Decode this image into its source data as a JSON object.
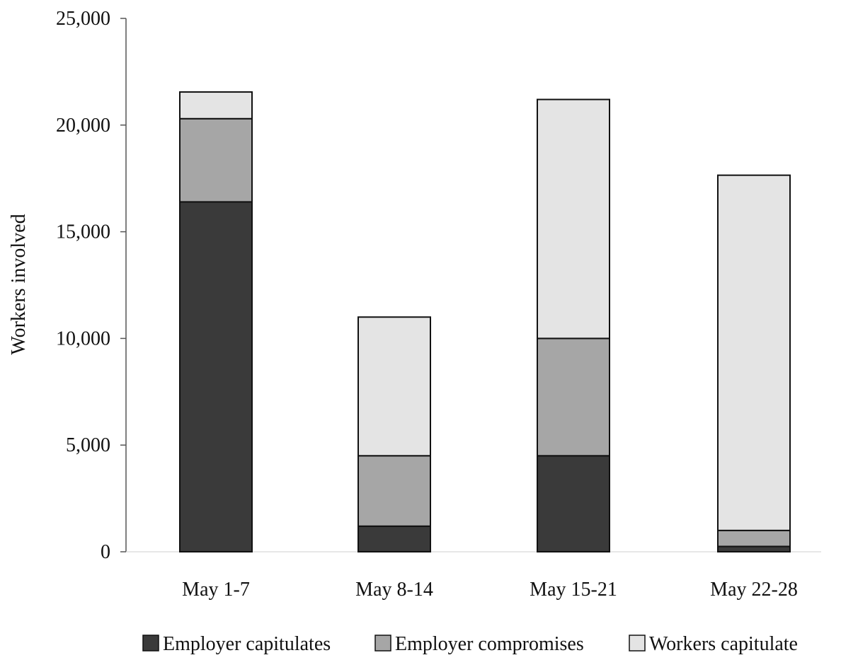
{
  "chart_data": {
    "type": "bar",
    "stacked": true,
    "categories": [
      "May 1-7",
      "May 8-14",
      "May 15-21",
      "May 22-28"
    ],
    "series": [
      {
        "name": "Employer capitulates",
        "color": "#3a3a3a",
        "values": [
          16400,
          1200,
          4500,
          250
        ]
      },
      {
        "name": "Employer compromises",
        "color": "#a6a6a6",
        "values": [
          3900,
          3300,
          5500,
          750
        ]
      },
      {
        "name": "Workers capitulate",
        "color": "#e4e4e4",
        "values": [
          1250,
          6500,
          11200,
          16650
        ]
      }
    ],
    "ylabel": "Workers involved",
    "ylim": [
      0,
      25000
    ],
    "yticks": [
      0,
      5000,
      10000,
      15000,
      20000,
      25000
    ],
    "ytick_labels": [
      "0",
      "5,000",
      "10,000",
      "15,000",
      "20,000",
      "25,000"
    ],
    "grid": false,
    "legend_position": "bottom"
  }
}
